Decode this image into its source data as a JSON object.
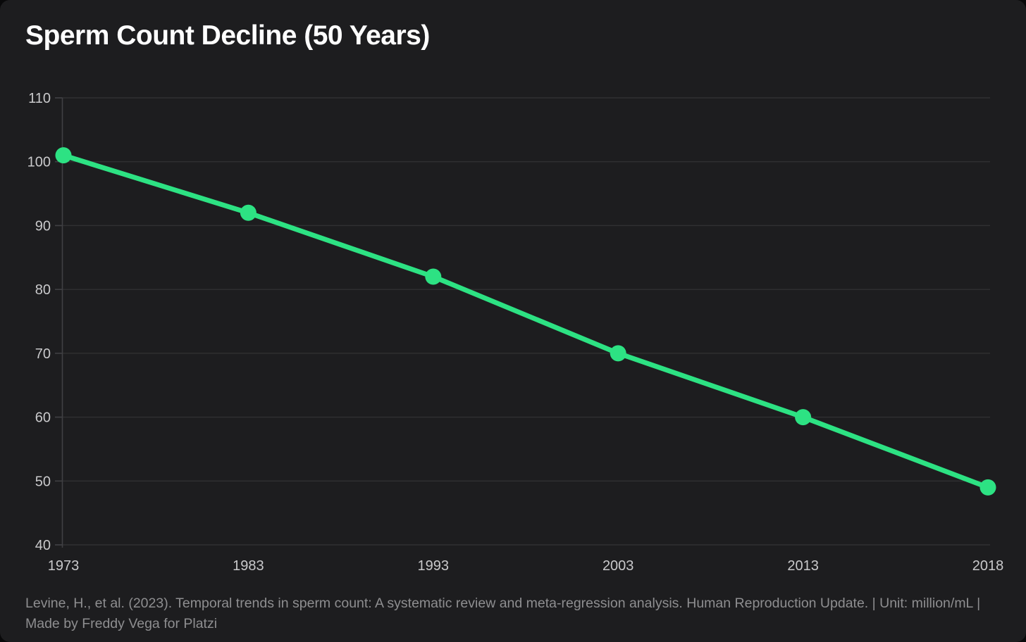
{
  "chart": {
    "title": "Sperm Count Decline (50 Years)",
    "source_note": "Levine, H., et al. (2023). Temporal trends in sperm count: A systematic review and meta-regression analysis. Human Reproduction Update. | Unit: million/mL | Made by Freddy Vega for Platzi"
  },
  "chart_data": {
    "type": "line",
    "title": "Sperm Count Decline (50 Years)",
    "categories": [
      "1973",
      "1983",
      "1993",
      "2003",
      "2013",
      "2018"
    ],
    "series": [
      {
        "name": "Sperm count",
        "values": [
          101,
          92,
          82,
          70,
          60,
          49
        ]
      }
    ],
    "unit": "million/mL",
    "xlabel": "",
    "ylabel": "",
    "ylim": [
      40,
      110
    ],
    "yticks": [
      110,
      100,
      90,
      80,
      70,
      60,
      50,
      40
    ],
    "grid": "horizontal-only",
    "legend_position": "none",
    "x_spacing": "equal-categorical",
    "marker": "circle",
    "annotations": []
  },
  "colors": {
    "background": "#1d1d1f",
    "line": "#2de283",
    "marker": "#2de283",
    "gridline": "#303032",
    "axis": "#404043",
    "tick_label": "#c9c9cb",
    "title": "#ffffff",
    "source_note": "#8e8e90"
  }
}
